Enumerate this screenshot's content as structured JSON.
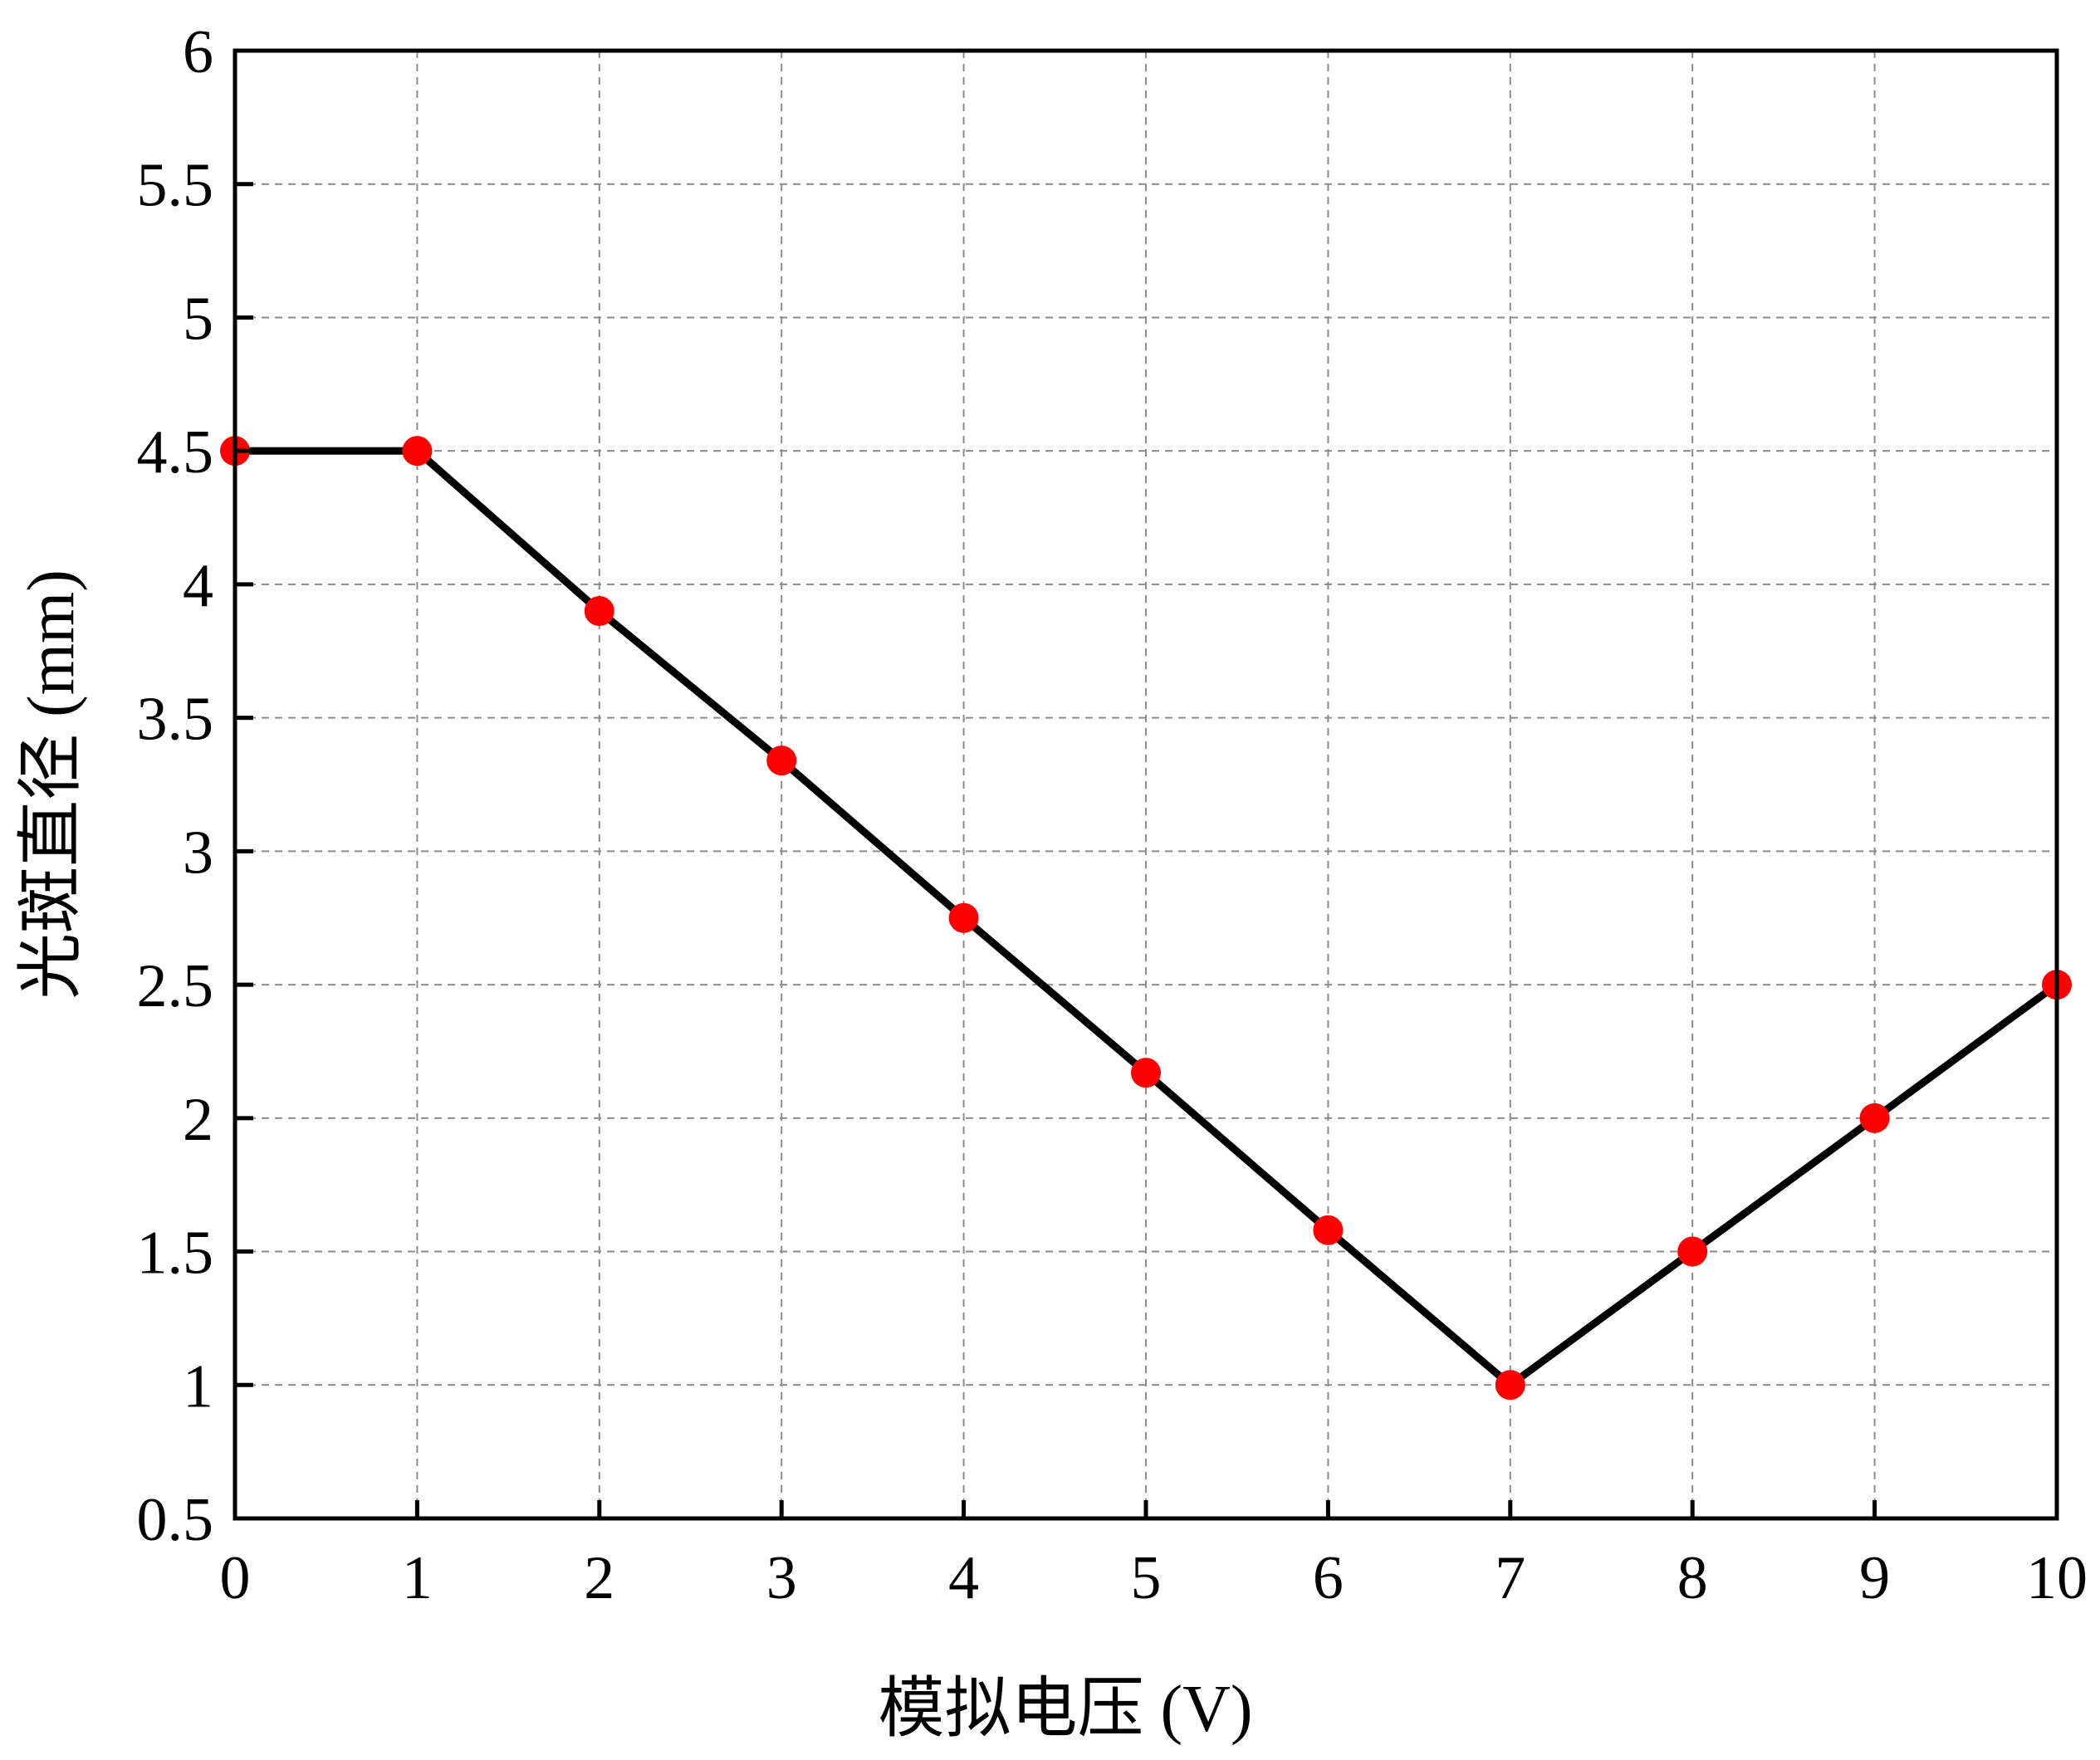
{
  "chart_data": {
    "type": "line",
    "title": "",
    "xlabel": "模拟电压 (V)",
    "ylabel": "光斑直径 (mm)",
    "xlim": [
      0,
      10
    ],
    "ylim": [
      0.5,
      6
    ],
    "x_ticks": [
      0,
      1,
      2,
      3,
      4,
      5,
      6,
      7,
      8,
      9,
      10
    ],
    "y_ticks": [
      0.5,
      1,
      1.5,
      2,
      2.5,
      3,
      3.5,
      4,
      4.5,
      5,
      5.5,
      6
    ],
    "x_tick_labels": [
      "0",
      "1",
      "2",
      "3",
      "4",
      "5",
      "6",
      "7",
      "8",
      "9",
      "10"
    ],
    "y_tick_labels": [
      "0.5",
      "1",
      "1.5",
      "2",
      "2.5",
      "3",
      "3.5",
      "4",
      "4.5",
      "5",
      "5.5",
      "6"
    ],
    "grid": true,
    "legend": "none",
    "series": [
      {
        "x": [
          0,
          1,
          2,
          3,
          4,
          5,
          6,
          7,
          8,
          9,
          10
        ],
        "y": [
          4.5,
          4.5,
          3.9,
          3.34,
          2.75,
          2.17,
          1.58,
          1.0,
          1.5,
          2.0,
          2.5
        ],
        "line_color": "#000000",
        "marker_color": "#ff0000",
        "marker": "circle"
      }
    ]
  }
}
